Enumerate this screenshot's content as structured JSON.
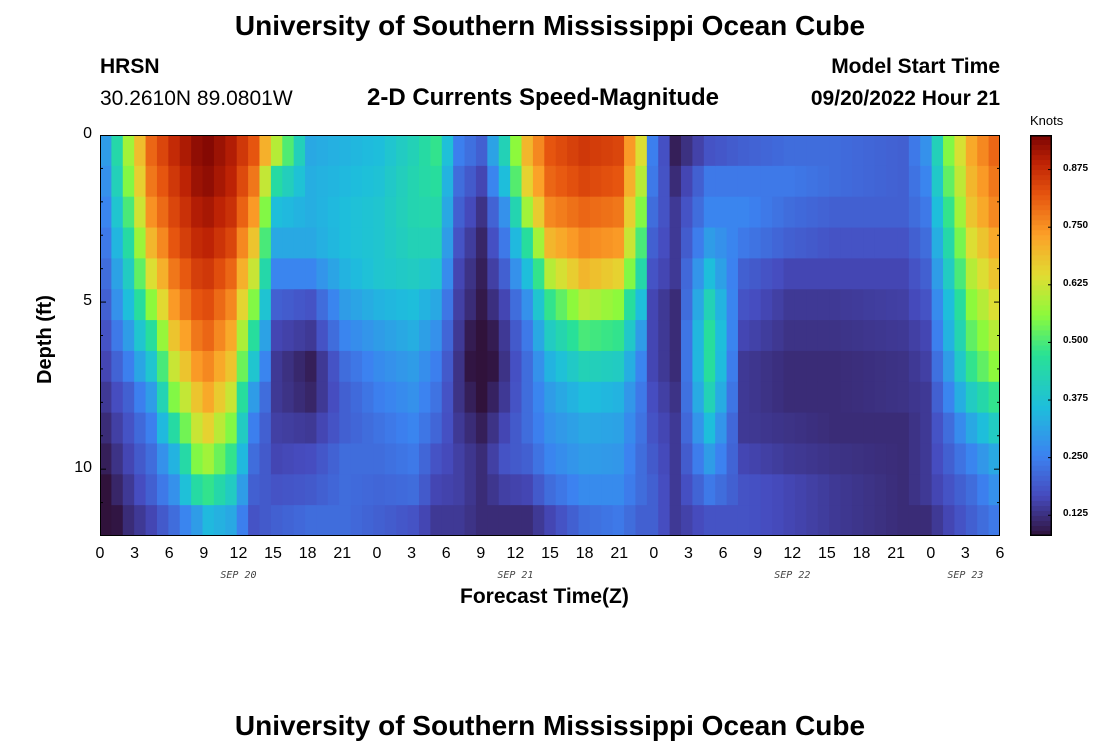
{
  "title_top": "University of Southern Mississippi Ocean Cube",
  "title_bottom": "University of Southern Mississippi Ocean Cube",
  "station": {
    "name": "HRSN",
    "coords": "30.2610N  89.0801W"
  },
  "plot_title": "2-D Currents Speed-Magnitude",
  "model_start": {
    "label": "Model Start Time",
    "value": "09/20/2022 Hour 21"
  },
  "colorbar": {
    "unit": "Knots",
    "ticks": [
      "0.875",
      "0.750",
      "0.625",
      "0.500",
      "0.375",
      "0.250",
      "0.125"
    ],
    "tick_values": [
      0.875,
      0.75,
      0.625,
      0.5,
      0.375,
      0.25,
      0.125
    ],
    "vmin": 0.08,
    "vmax": 0.95
  },
  "chart_data": {
    "type": "heatmap",
    "title": "2-D Currents Speed-Magnitude",
    "xlabel": "Forecast Time(Z)",
    "ylabel": "Depth (ft)",
    "xlim": [
      0,
      78
    ],
    "ylim": [
      12,
      0
    ],
    "y_ticks": [
      "0",
      "5",
      "10"
    ],
    "y_tick_values": [
      0,
      5,
      10
    ],
    "x_tick_labels": [
      "0",
      "3",
      "6",
      "9",
      "12",
      "15",
      "18",
      "21",
      "0",
      "3",
      "6",
      "9",
      "12",
      "15",
      "18",
      "21",
      "0",
      "3",
      "6",
      "9",
      "12",
      "15",
      "18",
      "21",
      "0",
      "3",
      "6"
    ],
    "day_labels": [
      {
        "text": "SEP 20",
        "x": 12
      },
      {
        "text": "SEP 21",
        "x": 36
      },
      {
        "text": "SEP 22",
        "x": 60
      },
      {
        "text": "SEP 23",
        "x": 75
      }
    ],
    "depth_levels_ft": [
      0,
      1,
      2,
      3,
      4,
      5,
      6,
      7,
      8,
      9,
      10,
      11,
      12
    ],
    "time_keyframes": [
      {
        "t": 0,
        "values": [
          0.3,
          0.28,
          0.26,
          0.24,
          0.22,
          0.2,
          0.18,
          0.16,
          0.14,
          0.12,
          0.1,
          0.08,
          0.05
        ]
      },
      {
        "t": 2,
        "values": [
          0.58,
          0.55,
          0.5,
          0.45,
          0.4,
          0.36,
          0.3,
          0.25,
          0.2,
          0.18,
          0.16,
          0.14,
          0.12
        ]
      },
      {
        "t": 4,
        "values": [
          0.8,
          0.78,
          0.75,
          0.7,
          0.64,
          0.56,
          0.46,
          0.38,
          0.3,
          0.25,
          0.22,
          0.2,
          0.16
        ]
      },
      {
        "t": 6,
        "values": [
          0.88,
          0.86,
          0.84,
          0.82,
          0.78,
          0.74,
          0.68,
          0.62,
          0.55,
          0.45,
          0.34,
          0.28,
          0.22
        ]
      },
      {
        "t": 8,
        "values": [
          0.93,
          0.92,
          0.9,
          0.88,
          0.85,
          0.82,
          0.78,
          0.74,
          0.68,
          0.62,
          0.55,
          0.45,
          0.3
        ]
      },
      {
        "t": 9,
        "values": [
          0.94,
          0.93,
          0.91,
          0.89,
          0.86,
          0.83,
          0.8,
          0.76,
          0.72,
          0.66,
          0.58,
          0.48,
          0.35
        ]
      },
      {
        "t": 11,
        "values": [
          0.9,
          0.89,
          0.87,
          0.84,
          0.8,
          0.76,
          0.72,
          0.68,
          0.62,
          0.55,
          0.48,
          0.4,
          0.32
        ]
      },
      {
        "t": 13,
        "values": [
          0.82,
          0.78,
          0.74,
          0.68,
          0.62,
          0.55,
          0.46,
          0.38,
          0.3,
          0.25,
          0.22,
          0.2,
          0.18
        ]
      },
      {
        "t": 15,
        "values": [
          0.6,
          0.45,
          0.36,
          0.32,
          0.26,
          0.2,
          0.16,
          0.14,
          0.14,
          0.15,
          0.16,
          0.18,
          0.2
        ]
      },
      {
        "t": 18,
        "values": [
          0.32,
          0.33,
          0.33,
          0.32,
          0.26,
          0.18,
          0.14,
          0.1,
          0.11,
          0.14,
          0.17,
          0.19,
          0.22
        ]
      },
      {
        "t": 21,
        "values": [
          0.34,
          0.35,
          0.36,
          0.36,
          0.34,
          0.3,
          0.26,
          0.22,
          0.2,
          0.2,
          0.22,
          0.22,
          0.22
        ]
      },
      {
        "t": 24,
        "values": [
          0.36,
          0.37,
          0.38,
          0.38,
          0.38,
          0.34,
          0.3,
          0.27,
          0.25,
          0.23,
          0.22,
          0.21,
          0.2
        ]
      },
      {
        "t": 27,
        "values": [
          0.42,
          0.43,
          0.43,
          0.42,
          0.4,
          0.36,
          0.33,
          0.3,
          0.28,
          0.26,
          0.24,
          0.22,
          0.18
        ]
      },
      {
        "t": 29,
        "values": [
          0.48,
          0.46,
          0.44,
          0.42,
          0.38,
          0.32,
          0.28,
          0.25,
          0.23,
          0.21,
          0.18,
          0.16,
          0.14
        ]
      },
      {
        "t": 31,
        "values": [
          0.25,
          0.22,
          0.2,
          0.18,
          0.16,
          0.15,
          0.14,
          0.13,
          0.13,
          0.14,
          0.15,
          0.15,
          0.14
        ]
      },
      {
        "t": 33,
        "values": [
          0.2,
          0.16,
          0.13,
          0.11,
          0.1,
          0.09,
          0.05,
          0.04,
          0.07,
          0.1,
          0.12,
          0.12,
          0.12
        ]
      },
      {
        "t": 35,
        "values": [
          0.42,
          0.36,
          0.28,
          0.24,
          0.2,
          0.16,
          0.14,
          0.13,
          0.14,
          0.16,
          0.18,
          0.15,
          0.12
        ]
      },
      {
        "t": 37,
        "values": [
          0.7,
          0.66,
          0.58,
          0.46,
          0.36,
          0.28,
          0.24,
          0.22,
          0.22,
          0.22,
          0.2,
          0.16,
          0.12
        ]
      },
      {
        "t": 39,
        "values": [
          0.82,
          0.8,
          0.76,
          0.7,
          0.6,
          0.48,
          0.4,
          0.34,
          0.3,
          0.28,
          0.26,
          0.22,
          0.16
        ]
      },
      {
        "t": 42,
        "values": [
          0.86,
          0.84,
          0.8,
          0.76,
          0.7,
          0.6,
          0.5,
          0.42,
          0.36,
          0.32,
          0.3,
          0.27,
          0.22
        ]
      },
      {
        "t": 45,
        "values": [
          0.84,
          0.82,
          0.78,
          0.74,
          0.66,
          0.56,
          0.48,
          0.4,
          0.34,
          0.31,
          0.29,
          0.27,
          0.24
        ]
      },
      {
        "t": 47,
        "values": [
          0.64,
          0.6,
          0.55,
          0.5,
          0.44,
          0.36,
          0.3,
          0.26,
          0.24,
          0.23,
          0.22,
          0.22,
          0.2
        ]
      },
      {
        "t": 48,
        "values": [
          0.25,
          0.24,
          0.22,
          0.2,
          0.18,
          0.16,
          0.16,
          0.16,
          0.17,
          0.18,
          0.19,
          0.2,
          0.2
        ]
      },
      {
        "t": 50,
        "values": [
          0.1,
          0.12,
          0.14,
          0.14,
          0.14,
          0.12,
          0.12,
          0.12,
          0.13,
          0.14,
          0.14,
          0.14,
          0.14
        ]
      },
      {
        "t": 53,
        "values": [
          0.18,
          0.24,
          0.26,
          0.3,
          0.36,
          0.42,
          0.46,
          0.46,
          0.42,
          0.36,
          0.3,
          0.24,
          0.18
        ]
      },
      {
        "t": 56,
        "values": [
          0.2,
          0.24,
          0.26,
          0.24,
          0.2,
          0.18,
          0.16,
          0.14,
          0.14,
          0.14,
          0.16,
          0.18,
          0.18
        ]
      },
      {
        "t": 60,
        "values": [
          0.22,
          0.24,
          0.22,
          0.2,
          0.16,
          0.14,
          0.13,
          0.12,
          0.12,
          0.13,
          0.14,
          0.16,
          0.16
        ]
      },
      {
        "t": 64,
        "values": [
          0.22,
          0.22,
          0.2,
          0.18,
          0.16,
          0.14,
          0.13,
          0.12,
          0.12,
          0.12,
          0.13,
          0.14,
          0.14
        ]
      },
      {
        "t": 70,
        "values": [
          0.2,
          0.2,
          0.2,
          0.18,
          0.16,
          0.15,
          0.14,
          0.13,
          0.13,
          0.12,
          0.12,
          0.12,
          0.12
        ]
      },
      {
        "t": 72,
        "values": [
          0.28,
          0.26,
          0.24,
          0.22,
          0.2,
          0.18,
          0.16,
          0.15,
          0.14,
          0.14,
          0.14,
          0.14,
          0.12
        ]
      },
      {
        "t": 74,
        "values": [
          0.55,
          0.52,
          0.48,
          0.44,
          0.4,
          0.36,
          0.34,
          0.3,
          0.26,
          0.22,
          0.2,
          0.18,
          0.16
        ]
      },
      {
        "t": 76,
        "values": [
          0.72,
          0.7,
          0.68,
          0.64,
          0.6,
          0.56,
          0.52,
          0.48,
          0.4,
          0.32,
          0.26,
          0.22,
          0.2
        ]
      },
      {
        "t": 78,
        "values": [
          0.8,
          0.78,
          0.76,
          0.72,
          0.68,
          0.64,
          0.6,
          0.56,
          0.48,
          0.4,
          0.32,
          0.28,
          0.24
        ]
      }
    ]
  }
}
